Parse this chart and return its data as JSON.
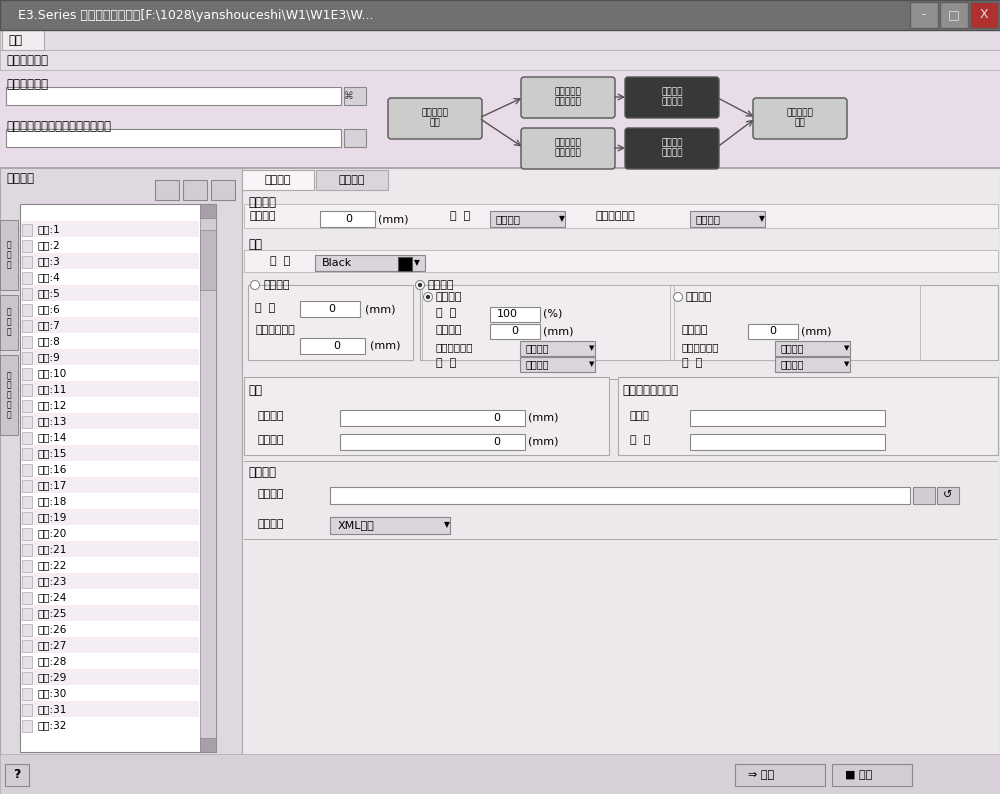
{
  "title_bar": "E3.Series 三维数据导出工具[F:\\1028\\yanshouceshi\\W1\\W1E3\\W...",
  "bg_color": "#e8dce8",
  "panel_bg": "#f0ecf0",
  "white": "#ffffff",
  "light_gray": "#d8d0d8",
  "titlebar_color": "#686868",
  "menu_bg": "#ece4ec",
  "tab1": "完整选项",
  "tab2": "简化选项",
  "menu_text": "导出",
  "section1": "导出工作状态",
  "label_orig_file": "原始线缆文件",
  "label_3d_file": "三维标注文件（用于读取线密度）",
  "label_cable_comp": "线缆构成",
  "flow_nodes": [
    "原始线缆已\n装载",
    "完整线缆文\n件已经生成",
    "完整线缆\n结构布线",
    "线缆设计已\n完成",
    "简化线缆文\n件已经生成",
    "简化线缆\n结构布线"
  ],
  "flow_colors": [
    "#cccccc",
    "#cccccc",
    "#383838",
    "#cccccc",
    "#cccccc",
    "#383838"
  ],
  "flow_text_colors": [
    "#000000",
    "#000000",
    "#ffffff",
    "#000000",
    "#000000",
    "#ffffff"
  ],
  "cable_items": [
    "芯线:1",
    "芯线:2",
    "芯线:3",
    "芯线:4",
    "芯线:5",
    "芯线:6",
    "芯线:7",
    "芯线:8",
    "芯线:9",
    "芯线:10",
    "芯线:11",
    "芯线:12",
    "芯线:13",
    "芯线:14",
    "芯线:15",
    "芯线:16",
    "芯线:17",
    "芯线:18",
    "芯线:19",
    "芯线:20",
    "芯线:21",
    "芯线:22",
    "芯线:23",
    "芯线:24",
    "芯线:25",
    "芯线:26",
    "芯线:27",
    "芯线:28",
    "芯线:29",
    "芯线:30",
    "芯线:31",
    "芯线:32"
  ],
  "left_vtabs": [
    "序\n列\n号",
    "资\n源\n名",
    "子\n部\n件\n组\n件"
  ],
  "lbl_cable_wire": "电缆导线",
  "lbl_insulation": "络缘厚度",
  "lbl_diameter": "直  径",
  "lbl_min_bend": "最小弯曲半径",
  "dd_default": "默认算法",
  "lbl_cable": "电缆",
  "lbl_color": "颜  色",
  "color_val": "Black",
  "lbl_manual": "手动输入",
  "lbl_auto": "自动计算",
  "lbl_diam2": "直  径",
  "lbl_min_bend2": "最小弯曲半径",
  "lbl_rect": "矩形算法",
  "lbl_ratio": "比  例",
  "ratio_val": "100",
  "ratio_unit": "(%)",
  "lbl_shield": "护套厚度",
  "lbl_circle": "圆形算法",
  "lbl_pin": "针脚",
  "lbl_inner": "内部长度",
  "lbl_arrange": "排列方式",
  "lbl_exchange": "交互文件版本信息",
  "lbl_identifier": "标识符",
  "lbl_version": "版  本",
  "lbl_output_path_sec": "输出路径",
  "lbl_output_path": "输出路径",
  "lbl_output_fmt": "输出格式",
  "fmt_val": "XML格式",
  "btn_export": "导出",
  "btn_quit": "退出",
  "val_0": "0",
  "unit_mm": "(mm)"
}
